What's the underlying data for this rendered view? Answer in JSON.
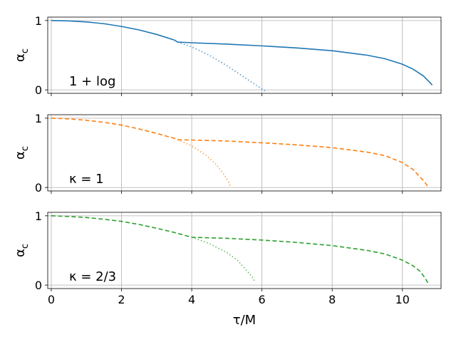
{
  "chart_data": {
    "type": "line",
    "xlabel": "τ/M",
    "xlim": [
      -0.1,
      11.1
    ],
    "xticks": [
      0,
      2,
      4,
      6,
      8,
      10
    ],
    "xtick_labels": [
      "0",
      "2",
      "4",
      "6",
      "8",
      "10"
    ],
    "grid": true,
    "panels": [
      {
        "label": "1 + log",
        "ylabel": "α_c",
        "ylabel_main": "α",
        "ylabel_sub": "c",
        "ylim": [
          -0.05,
          1.05
        ],
        "yticks": [
          0,
          1
        ],
        "ytick_labels": [
          "0",
          "1"
        ],
        "color": "#1f77b4",
        "series": [
          {
            "style": "solid",
            "x": [
              0,
              0.5,
              1,
              1.5,
              2,
              2.5,
              3,
              3.5,
              3.6,
              4,
              5,
              6,
              7,
              8,
              9,
              9.5,
              10,
              10.3,
              10.6,
              10.85
            ],
            "y": [
              1.0,
              0.995,
              0.98,
              0.955,
              0.915,
              0.865,
              0.8,
              0.72,
              0.69,
              0.68,
              0.66,
              0.635,
              0.605,
              0.565,
              0.5,
              0.45,
              0.37,
              0.3,
              0.2,
              0.07
            ]
          },
          {
            "style": "dotted",
            "x": [
              3.6,
              4,
              4.5,
              5,
              5.5,
              5.8,
              6.1
            ],
            "y": [
              0.69,
              0.62,
              0.5,
              0.35,
              0.18,
              0.08,
              -0.02
            ]
          }
        ]
      },
      {
        "label": "κ = 1",
        "ylabel": "α_c",
        "ylabel_main": "α",
        "ylabel_sub": "c",
        "ylim": [
          -0.05,
          1.05
        ],
        "yticks": [
          0,
          1
        ],
        "ytick_labels": [
          "0",
          "1"
        ],
        "color": "#ff7f0e",
        "series": [
          {
            "style": "dashed",
            "x": [
              0,
              0.5,
              1,
              1.5,
              2,
              2.5,
              3,
              3.5,
              3.6,
              4,
              5,
              6,
              7,
              8,
              9,
              9.5,
              10,
              10.3,
              10.6,
              10.75
            ],
            "y": [
              1.0,
              0.99,
              0.97,
              0.94,
              0.9,
              0.845,
              0.78,
              0.71,
              0.69,
              0.685,
              0.67,
              0.645,
              0.615,
              0.575,
              0.51,
              0.46,
              0.36,
              0.26,
              0.1,
              0.0
            ]
          },
          {
            "style": "dotted",
            "x": [
              3.6,
              4,
              4.4,
              4.7,
              4.9,
              5.05,
              5.1
            ],
            "y": [
              0.69,
              0.6,
              0.47,
              0.33,
              0.2,
              0.08,
              0.02
            ]
          }
        ]
      },
      {
        "label": "κ = 2/3",
        "ylabel": "α_c",
        "ylabel_main": "α",
        "ylabel_sub": "c",
        "ylim": [
          -0.05,
          1.05
        ],
        "yticks": [
          0,
          1
        ],
        "ytick_labels": [
          "0",
          "1"
        ],
        "color": "#2ca02c",
        "series": [
          {
            "style": "dashed",
            "x": [
              0,
              0.5,
              1,
              1.5,
              2,
              2.5,
              3,
              3.5,
              4,
              5,
              6,
              7,
              8,
              9,
              9.5,
              10,
              10.3,
              10.5,
              10.65,
              10.75
            ],
            "y": [
              1.0,
              0.99,
              0.975,
              0.95,
              0.92,
              0.875,
              0.82,
              0.76,
              0.69,
              0.675,
              0.65,
              0.615,
              0.57,
              0.5,
              0.45,
              0.36,
              0.28,
              0.2,
              0.1,
              0.01
            ]
          },
          {
            "style": "dotted",
            "x": [
              4,
              4.5,
              5,
              5.3,
              5.55,
              5.75,
              5.8
            ],
            "y": [
              0.69,
              0.6,
              0.47,
              0.36,
              0.22,
              0.1,
              0.04
            ]
          }
        ]
      }
    ]
  }
}
